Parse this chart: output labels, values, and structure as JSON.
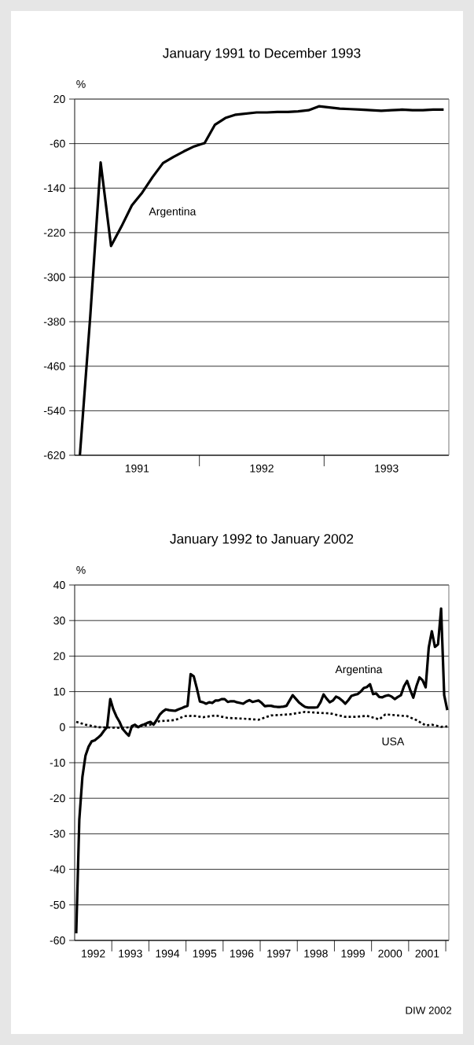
{
  "chart_data": [
    {
      "type": "line",
      "title": "January 1991 to December 1993",
      "ylabel": "%",
      "xlim": [
        "1990-12-16",
        "1993-12-16"
      ],
      "xticks": [
        {
          "value": "1991-06-16",
          "label": "1991"
        },
        {
          "value": "1991-12-16",
          "label": null
        },
        {
          "value": "1992-06-16",
          "label": "1992"
        },
        {
          "value": "1992-12-16",
          "label": null
        },
        {
          "value": "1993-06-16",
          "label": "1993"
        }
      ],
      "ylim": [
        -620,
        20
      ],
      "yticks": [
        -620,
        -540,
        -460,
        -380,
        -300,
        -220,
        -140,
        -60,
        20
      ],
      "grid": "y",
      "x": [
        "1991-01",
        "1991-02",
        "1991-03",
        "1991-04",
        "1991-05",
        "1991-06",
        "1991-07",
        "1991-08",
        "1991-09",
        "1991-10",
        "1991-11",
        "1991-12",
        "1992-01",
        "1992-02",
        "1992-03",
        "1992-04",
        "1992-05",
        "1992-06",
        "1992-07",
        "1992-08",
        "1992-09",
        "1992-10",
        "1992-11",
        "1992-12",
        "1993-01",
        "1993-02",
        "1993-03",
        "1993-04",
        "1993-05",
        "1993-06",
        "1993-07",
        "1993-08",
        "1993-09",
        "1993-10",
        "1993-11",
        "1993-12"
      ],
      "series": [
        {
          "name": "Argentina",
          "color": "#000000",
          "line_style": "solid",
          "values": [
            -620,
            -370,
            -94,
            -244,
            -209,
            -171,
            -148,
            -120,
            -95,
            -84,
            -74,
            -65,
            -59,
            -26,
            -14,
            -8,
            -6,
            -4,
            -4,
            -3,
            -3,
            -2,
            0,
            7,
            5,
            3,
            2,
            1,
            0,
            -1,
            0,
            1,
            0,
            0,
            1,
            1
          ]
        }
      ]
    },
    {
      "type": "line",
      "title": "January 1992 to January 2002",
      "ylabel": "%",
      "xlim": [
        "1991-12-16",
        "2002-01-16"
      ],
      "xticks": [
        {
          "value": "1992-06-16",
          "label": "1992"
        },
        {
          "value": "1992-12-16",
          "label": null
        },
        {
          "value": "1993-06-16",
          "label": "1993"
        },
        {
          "value": "1993-12-16",
          "label": null
        },
        {
          "value": "1994-06-16",
          "label": "1994"
        },
        {
          "value": "1994-12-16",
          "label": null
        },
        {
          "value": "1995-06-16",
          "label": "1995"
        },
        {
          "value": "1995-12-16",
          "label": null
        },
        {
          "value": "1996-06-16",
          "label": "1996"
        },
        {
          "value": "1996-12-16",
          "label": null
        },
        {
          "value": "1997-06-16",
          "label": "1997"
        },
        {
          "value": "1997-12-16",
          "label": null
        },
        {
          "value": "1998-06-16",
          "label": "1998"
        },
        {
          "value": "1998-12-16",
          "label": null
        },
        {
          "value": "1999-06-16",
          "label": "1999"
        },
        {
          "value": "1999-12-16",
          "label": null
        },
        {
          "value": "2000-06-16",
          "label": "2000"
        },
        {
          "value": "2000-12-16",
          "label": null
        },
        {
          "value": "2001-06-16",
          "label": "2001"
        },
        {
          "value": "2001-12-16",
          "label": null
        }
      ],
      "ylim": [
        -60,
        40
      ],
      "yticks": [
        -60,
        -50,
        -40,
        -30,
        -20,
        -10,
        0,
        10,
        20,
        30,
        40
      ],
      "grid": "y",
      "x": [
        "1992-01",
        "1992-02",
        "1992-03",
        "1992-04",
        "1992-05",
        "1992-06",
        "1992-07",
        "1992-08",
        "1992-09",
        "1992-10",
        "1992-11",
        "1992-12",
        "1993-01",
        "1993-02",
        "1993-03",
        "1993-04",
        "1993-05",
        "1993-06",
        "1993-07",
        "1993-08",
        "1993-09",
        "1993-10",
        "1993-11",
        "1993-12",
        "1994-01",
        "1994-02",
        "1994-03",
        "1994-04",
        "1994-05",
        "1994-06",
        "1994-07",
        "1994-08",
        "1994-09",
        "1994-10",
        "1994-11",
        "1994-12",
        "1995-01",
        "1995-02",
        "1995-03",
        "1995-04",
        "1995-05",
        "1995-06",
        "1995-07",
        "1995-08",
        "1995-09",
        "1995-10",
        "1995-11",
        "1995-12",
        "1996-01",
        "1996-02",
        "1996-03",
        "1996-04",
        "1996-05",
        "1996-06",
        "1996-07",
        "1996-08",
        "1996-09",
        "1996-10",
        "1996-11",
        "1996-12",
        "1997-01",
        "1997-02",
        "1997-03",
        "1997-04",
        "1997-05",
        "1997-06",
        "1997-07",
        "1997-08",
        "1997-09",
        "1997-10",
        "1997-11",
        "1997-12",
        "1998-01",
        "1998-02",
        "1998-03",
        "1998-04",
        "1998-05",
        "1998-06",
        "1998-07",
        "1998-08",
        "1998-09",
        "1998-10",
        "1998-11",
        "1998-12",
        "1999-01",
        "1999-02",
        "1999-03",
        "1999-04",
        "1999-05",
        "1999-06",
        "1999-07",
        "1999-08",
        "1999-09",
        "1999-10",
        "1999-11",
        "1999-12",
        "2000-01",
        "2000-02",
        "2000-03",
        "2000-04",
        "2000-05",
        "2000-06",
        "2000-07",
        "2000-08",
        "2000-09",
        "2000-10",
        "2000-11",
        "2000-12",
        "2001-01",
        "2001-02",
        "2001-03",
        "2001-04",
        "2001-05",
        "2001-06",
        "2001-07",
        "2001-08",
        "2001-09",
        "2001-10",
        "2001-11",
        "2001-12",
        "2002-01"
      ],
      "series": [
        {
          "name": "Argentina",
          "color": "#000000",
          "line_style": "solid",
          "values": [
            -58,
            -26,
            -14,
            -8,
            -5.5,
            -4,
            -3.7,
            -3,
            -2.2,
            -1,
            0,
            7.9,
            5,
            3,
            1.5,
            -0.5,
            -1.5,
            -2.4,
            0.3,
            0.7,
            0,
            0.5,
            0.8,
            1.2,
            1.5,
            0.7,
            2,
            3.5,
            4.4,
            5,
            4.8,
            4.7,
            4.6,
            5,
            5.3,
            5.7,
            6,
            14.9,
            14.3,
            11,
            7.2,
            7,
            6.6,
            7,
            6.8,
            7.5,
            7.5,
            7.9,
            7.9,
            7.1,
            7.3,
            7.3,
            7,
            6.8,
            6.6,
            7.2,
            7.6,
            7.1,
            7.3,
            7.5,
            6.8,
            5.9,
            6,
            6,
            5.8,
            5.7,
            5.7,
            5.8,
            6,
            7.5,
            9,
            8,
            7,
            6.3,
            5.7,
            5.5,
            5.5,
            5.5,
            5.6,
            7,
            9.2,
            8,
            7,
            7.5,
            8.6,
            8.2,
            7.5,
            6.6,
            7.6,
            8.8,
            9.1,
            9.3,
            10,
            11,
            11.3,
            12.1,
            9.3,
            9.5,
            8.5,
            8.4,
            8.8,
            9,
            8.6,
            7.9,
            8.5,
            9,
            11.5,
            13,
            10.5,
            8.3,
            11.5,
            14,
            13.2,
            11.2,
            22.4,
            27,
            22.6,
            23.3,
            33.4,
            9,
            4.8
          ]
        },
        {
          "name": "USA",
          "color": "#000000",
          "line_style": "dotted",
          "x": [
            "1992-01",
            "1992-04",
            "1992-08",
            "1992-12",
            "1993-04",
            "1993-09",
            "1994-01",
            "1994-04",
            "1994-06",
            "1994-09",
            "1994-12",
            "1995-03",
            "1995-06",
            "1995-10",
            "1996-02",
            "1996-07",
            "1996-12",
            "1997-04",
            "1997-10",
            "1998-03",
            "1998-08",
            "1998-11",
            "1999-04",
            "1999-07",
            "1999-11",
            "2000-03",
            "2000-05",
            "2000-09",
            "2000-12",
            "2001-03",
            "2001-06",
            "2001-08",
            "2001-11",
            "2002-01"
          ],
          "values": [
            1.5,
            0.7,
            0,
            -0.1,
            -0.2,
            0.2,
            0.7,
            1.7,
            1.8,
            2,
            3.1,
            3.2,
            2.8,
            3.3,
            2.6,
            2.4,
            2.1,
            3.3,
            3.6,
            4.3,
            4,
            3.9,
            2.9,
            2.9,
            3.2,
            2.2,
            3.6,
            3.3,
            3.1,
            2,
            0.5,
            0.7,
            0.1,
            0.2
          ]
        }
      ],
      "annotations": [
        "DIW 2002"
      ]
    }
  ]
}
